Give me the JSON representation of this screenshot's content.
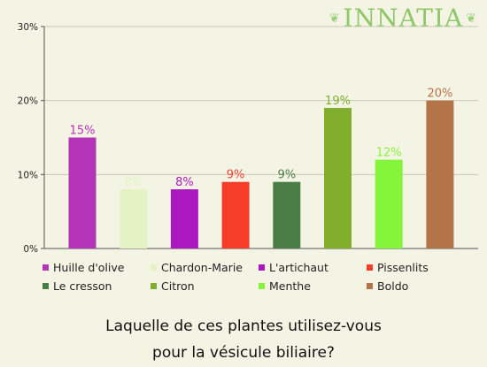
{
  "brand": {
    "name": "INNATIA"
  },
  "question": {
    "line1": "Laquelle de ces plantes utilisez-vous",
    "line2": "pour la vésicule biliaire?"
  },
  "chart_data": {
    "type": "bar",
    "categories": [
      "Huille d'olive",
      "Chardon-Marie",
      "L'artichaut",
      "Pissenlits",
      "Le cresson",
      "Citron",
      "Menthe",
      "Boldo"
    ],
    "values": [
      15,
      8,
      8,
      9,
      9,
      19,
      12,
      20
    ],
    "value_labels": [
      "15%",
      "8%",
      "8%",
      "9%",
      "9%",
      "19%",
      "12%",
      "20%"
    ],
    "colors": [
      "#b535b8",
      "#e3f3c3",
      "#ad17c0",
      "#f53d2a",
      "#4b7e44",
      "#82ae2d",
      "#84f53b",
      "#b37548"
    ],
    "ylim": [
      0,
      30
    ],
    "yticks": [
      0,
      10,
      20,
      30
    ],
    "ytick_labels": [
      "0%",
      "10%",
      "20%",
      "30%"
    ],
    "grid": true,
    "legend_position": "bottom"
  }
}
